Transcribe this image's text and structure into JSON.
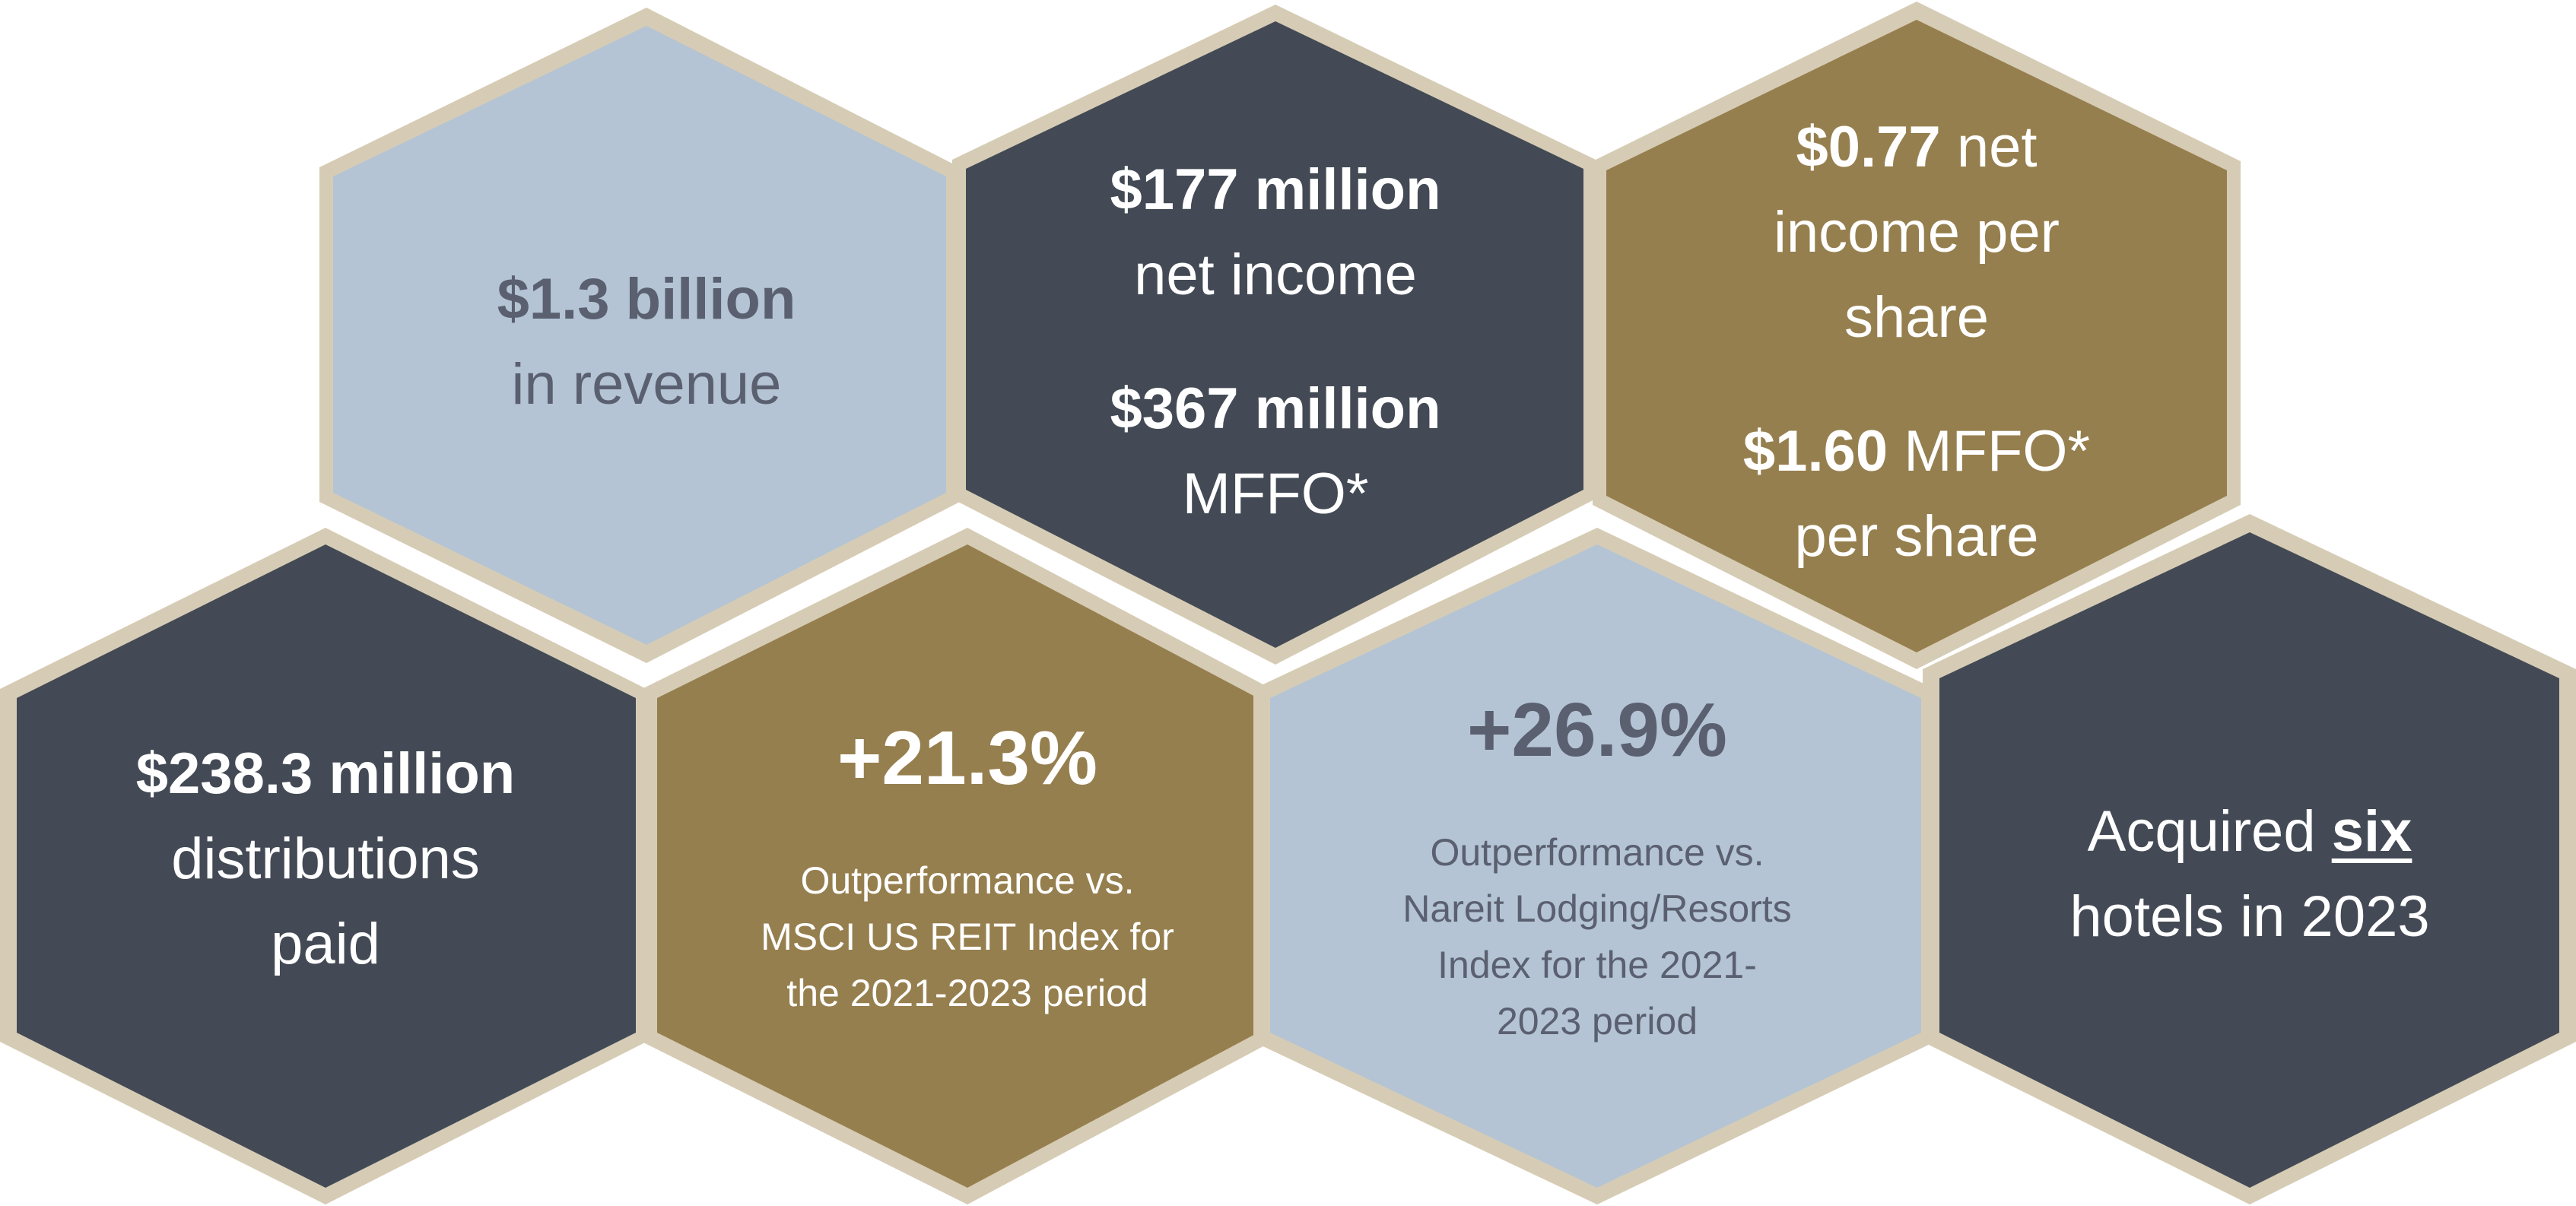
{
  "colors": {
    "border": "#d6ccb5",
    "light_blue": "#b4c4d4",
    "dark_slate": "#434a55",
    "gold": "#967f4e",
    "text_light": "#ffffff",
    "text_dark": "#5a6070"
  },
  "tiles": {
    "revenue": {
      "value": "$1.3 billion",
      "label": "in revenue"
    },
    "net_income": {
      "value": "$177 million",
      "label": "net income",
      "value2": "$367 million",
      "label2": "MFFO*"
    },
    "per_share": {
      "value": "$0.77",
      "label_a": "net",
      "label_b": "income per",
      "label_c": "share",
      "value2": "$1.60",
      "label2_a": "MFFO*",
      "label2_b": "per share"
    },
    "distributions": {
      "value": "$238.3 million",
      "label_a": "distributions",
      "label_b": "paid"
    },
    "msci": {
      "value": "+21.3%",
      "desc_a": "Outperformance vs.",
      "desc_b": "MSCI US REIT Index for",
      "desc_c": "the 2021-2023 period"
    },
    "nareit": {
      "value": "+26.9%",
      "desc_a": "Outperformance vs.",
      "desc_b": "Nareit Lodging/Resorts",
      "desc_c": "Index for the 2021-",
      "desc_d": "2023 period"
    },
    "acquired": {
      "prefix": "Acquired",
      "count": "six",
      "suffix": "hotels in 2023"
    }
  }
}
